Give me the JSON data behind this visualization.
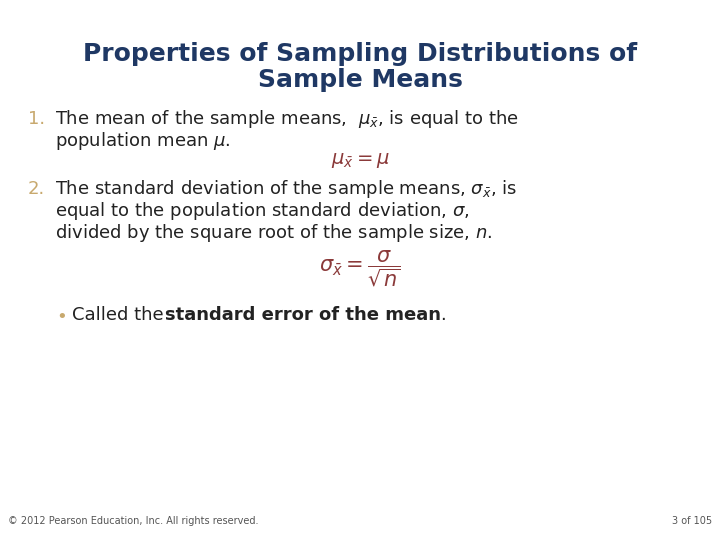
{
  "title_line1": "Properties of Sampling Distributions of",
  "title_line2": "Sample Means",
  "title_color": "#1F3864",
  "background_color": "#FFFFFF",
  "number_color": "#C8A96E",
  "body_color": "#222222",
  "formula_color": "#8B3A3A",
  "bullet_color": "#C8A96E",
  "footer_left": "© 2012 Pearson Education, Inc. All rights reserved.",
  "footer_right": "3 of 105",
  "footer_color": "#555555"
}
